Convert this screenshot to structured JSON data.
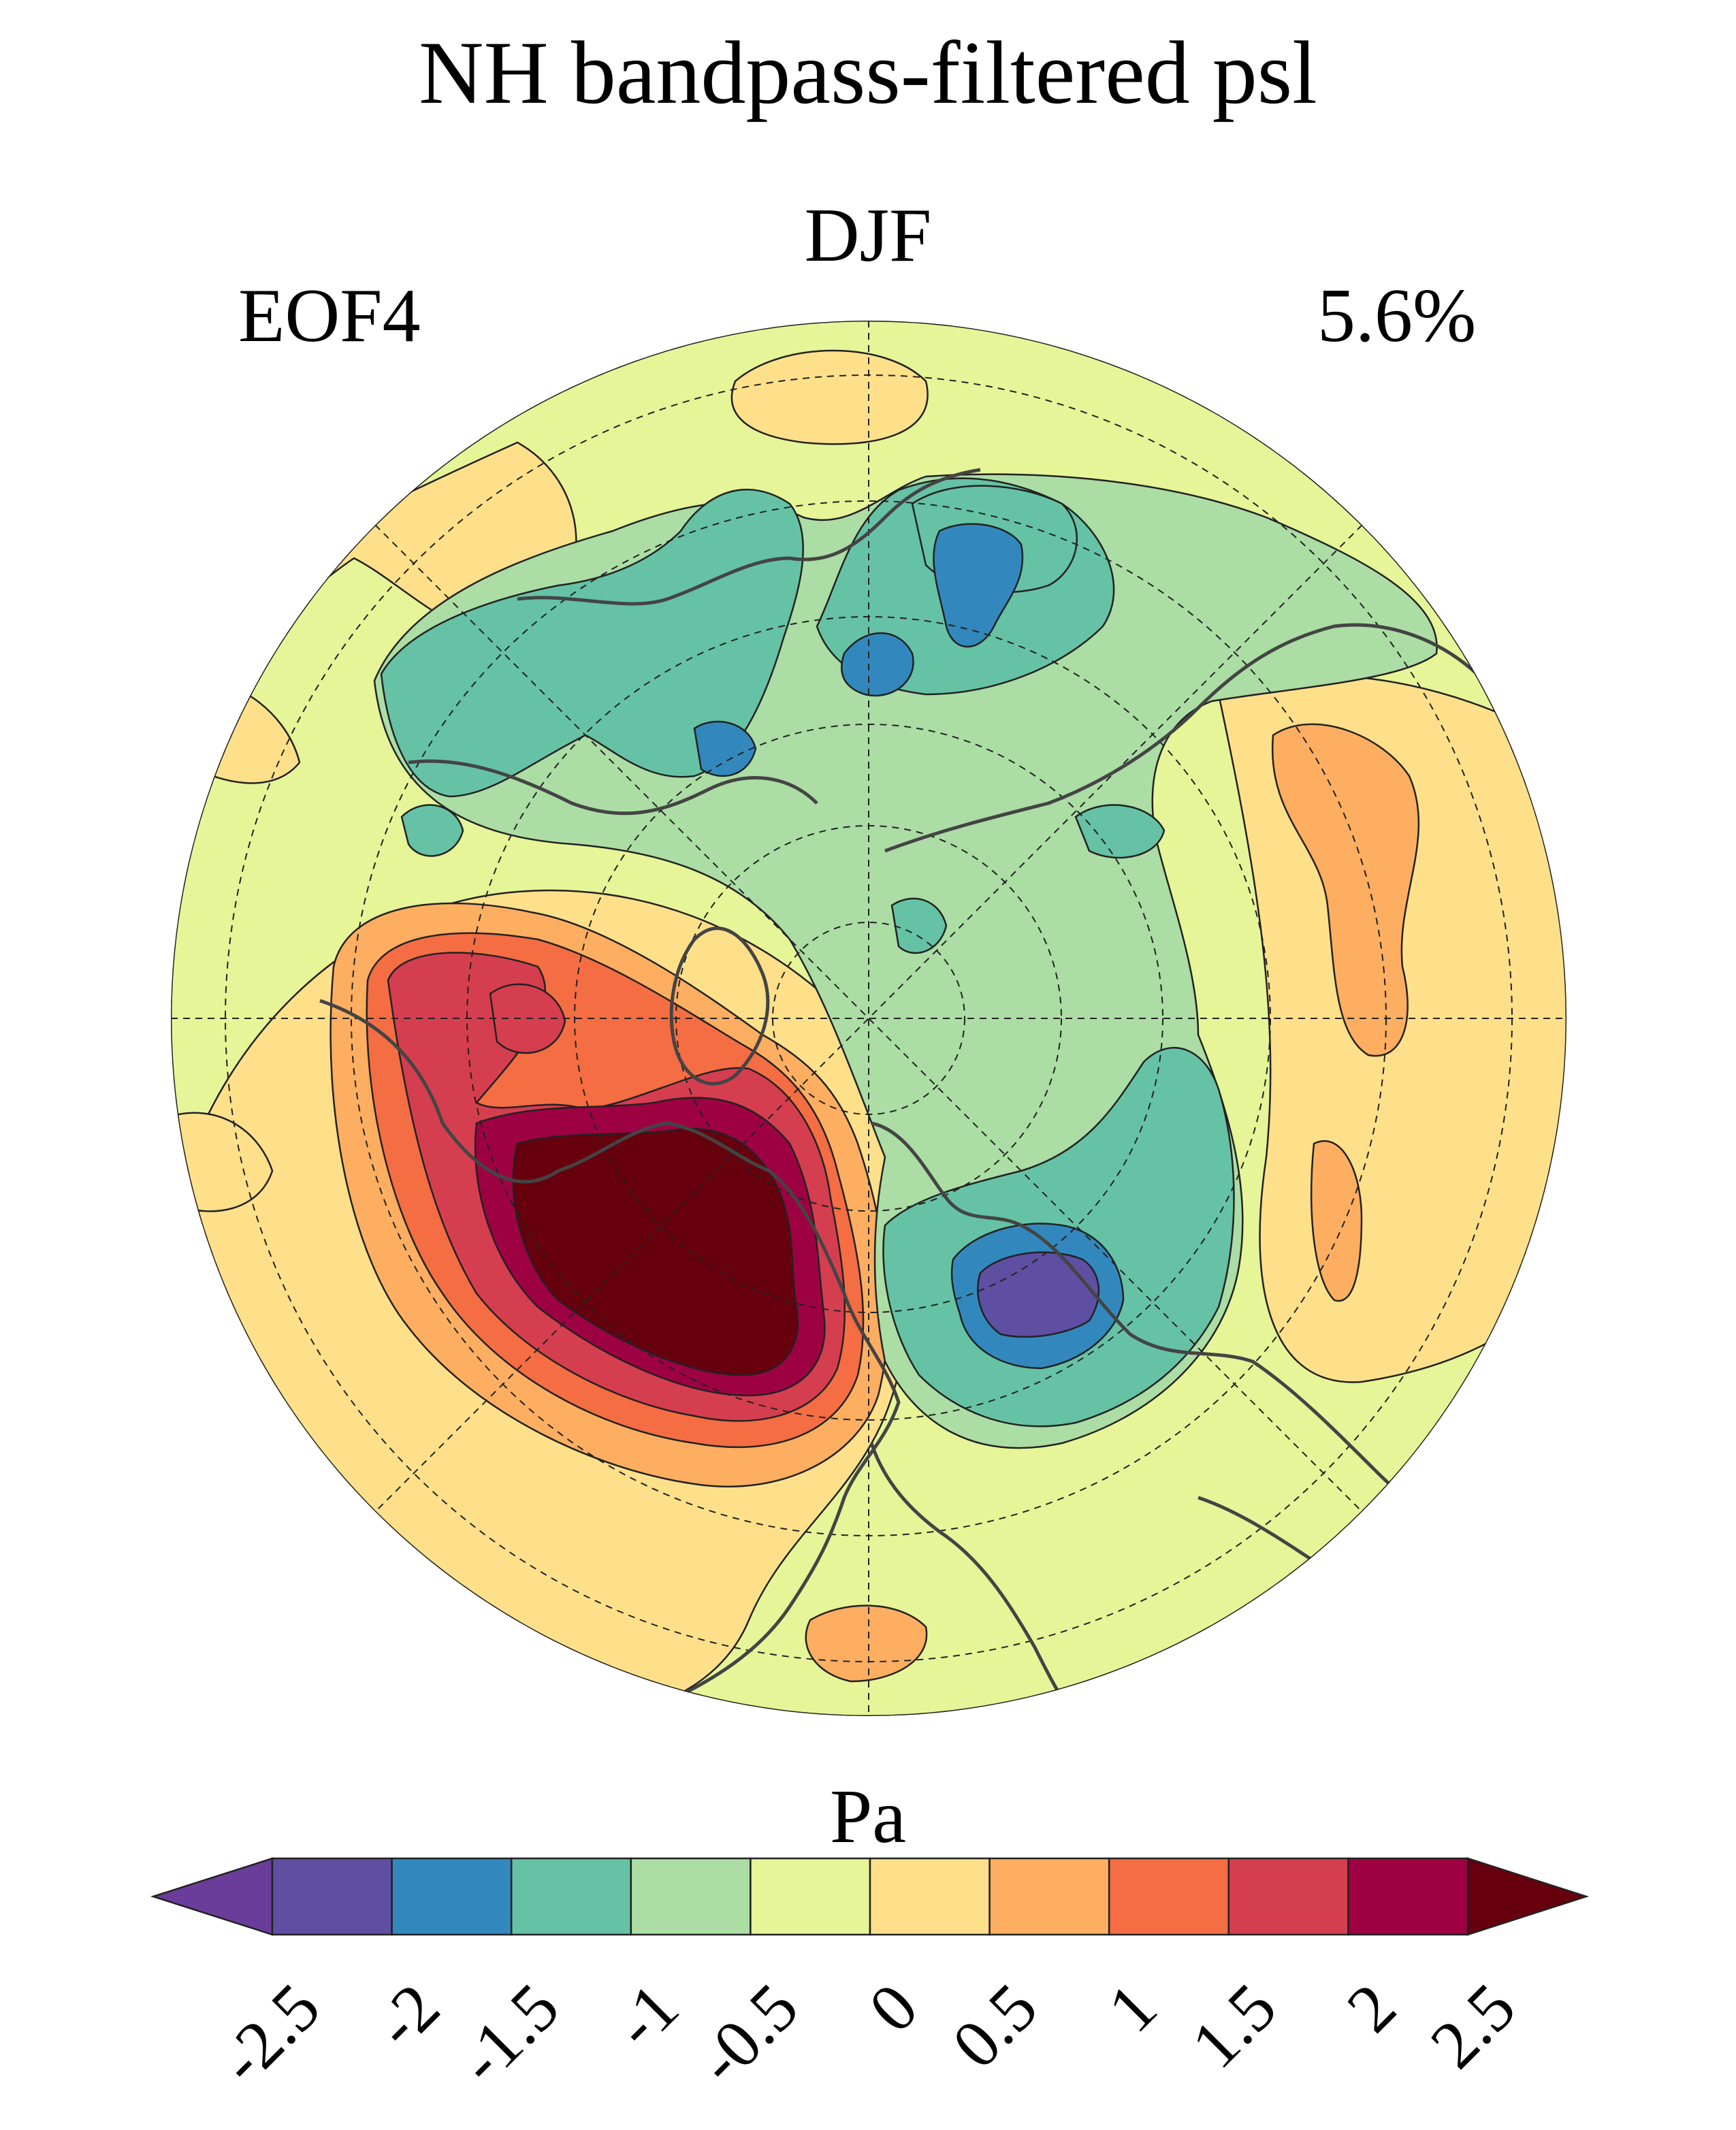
{
  "title": "NH bandpass-filtered psl",
  "season": "DJF",
  "mode_label": "EOF4",
  "variance_label": "5.6%",
  "colorbar": {
    "unit": "Pa",
    "levels": [
      "-2.5",
      "-2",
      "-1.5",
      "-1",
      "-0.5",
      "0",
      "0.5",
      "1",
      "1.5",
      "2",
      "2.5"
    ],
    "colors": [
      "#5e4fa2",
      "#3288bd",
      "#66c2a5",
      "#abdda4",
      "#e6f598",
      "#fee08b",
      "#fdae61",
      "#f46d43",
      "#d53e4f",
      "#9e0142"
    ],
    "under_color": "#6a3d9a",
    "over_color": "#67000d"
  },
  "map": {
    "projection": "north polar stereographic",
    "background_color": "#e6f598",
    "graticule": "dashed"
  }
}
